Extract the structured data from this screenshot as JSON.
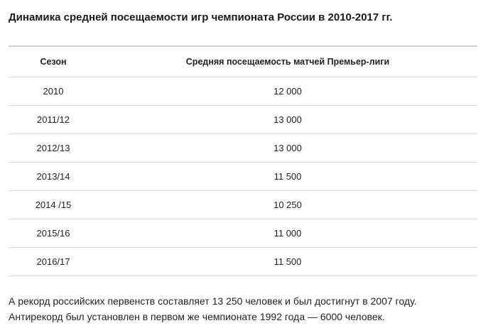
{
  "title": "Динамика средней посещаемости игр чемпионата России в 2010-2017 гг.",
  "table": {
    "headers": [
      "Сезон",
      "Средняя посещаемость матчей Премьер-лиги"
    ],
    "rows": [
      [
        "2010",
        "12 000"
      ],
      [
        "2011/12",
        "13 000"
      ],
      [
        "2012/13",
        "13 000"
      ],
      [
        "2013/14",
        "11 500"
      ],
      [
        "2014 /15",
        "10 250"
      ],
      [
        "2015/16",
        "11 000"
      ],
      [
        "2016/17",
        "11 500"
      ]
    ]
  },
  "chart_data": {
    "type": "table",
    "title": "Динамика средней посещаемости игр чемпионата России в 2010-2017 гг.",
    "columns": [
      "Сезон",
      "Средняя посещаемость матчей Премьер-лиги"
    ],
    "categories": [
      "2010",
      "2011/12",
      "2012/13",
      "2013/14",
      "2014 /15",
      "2015/16",
      "2016/17"
    ],
    "values": [
      12000,
      13000,
      13000,
      11500,
      10250,
      11000,
      11500
    ]
  },
  "notes": [
    "А рекорд российских первенств составляет 13 250 человек и был достигнут в 2007 году.",
    "Антирекорд был установлен в первом же чемпионате 1992 года — 6000 человек."
  ]
}
